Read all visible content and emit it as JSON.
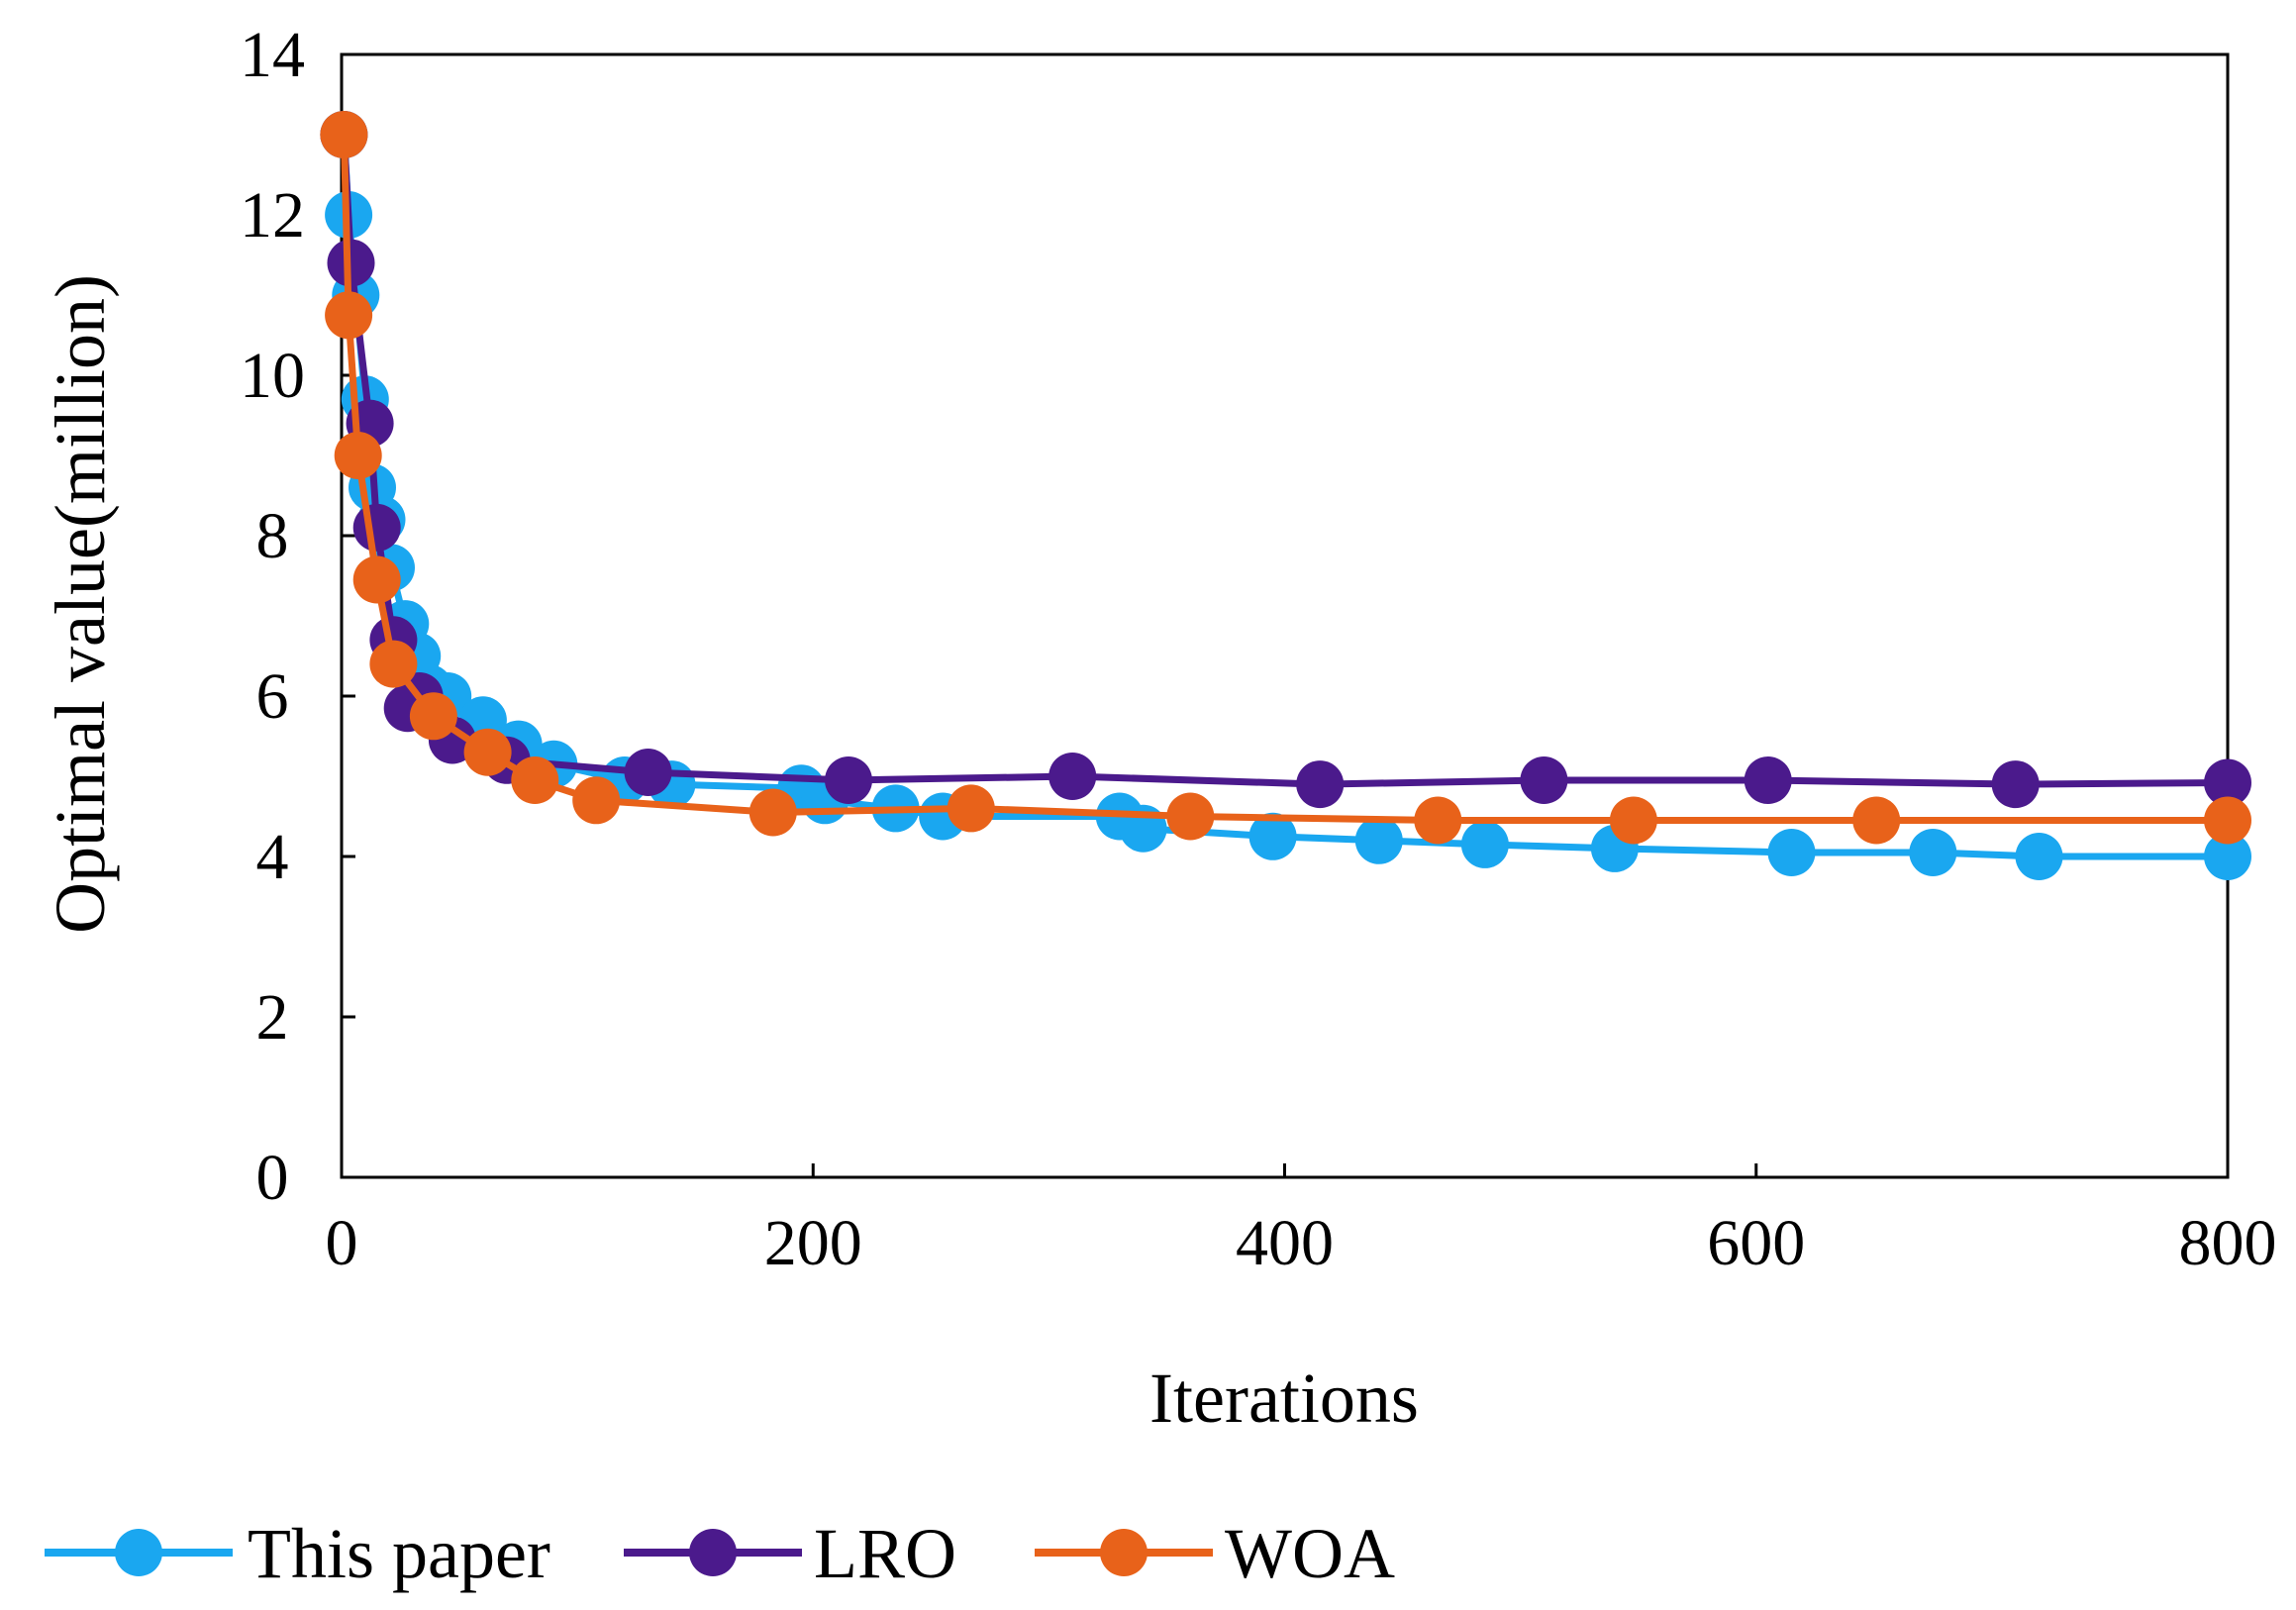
{
  "chart_data": {
    "type": "line",
    "title": "",
    "xlabel": "Iterations",
    "ylabel": "Optimal value(million)",
    "xlim": [
      0,
      800
    ],
    "ylim": [
      0,
      14
    ],
    "xticks": [
      "0",
      "200",
      "400",
      "600",
      "800"
    ],
    "yticks": [
      "0",
      "2",
      "4",
      "6",
      "8",
      "10",
      "12",
      "14"
    ],
    "grid": false,
    "legend_position": "bottom",
    "series": [
      {
        "name": "This paper",
        "color": "#1aa7f0",
        "x": [
          1,
          3,
          6,
          10,
          13,
          17,
          21,
          27,
          32,
          37,
          45,
          60,
          75,
          90,
          120,
          140,
          195,
          205,
          235,
          255,
          330,
          340,
          395,
          440,
          485,
          540,
          615,
          675,
          720,
          800
        ],
        "y": [
          13.0,
          12.0,
          11.0,
          9.7,
          8.6,
          8.2,
          7.6,
          6.9,
          6.5,
          6.1,
          6.0,
          5.7,
          5.4,
          5.15,
          4.95,
          4.9,
          4.85,
          4.7,
          4.6,
          4.5,
          4.5,
          4.35,
          4.25,
          4.2,
          4.15,
          4.1,
          4.05,
          4.05,
          4.0,
          4.0
        ]
      },
      {
        "name": "LRO",
        "color": "#4b1a8c",
        "x": [
          1,
          4,
          12,
          15,
          22,
          28,
          33,
          47,
          70,
          130,
          215,
          310,
          415,
          510,
          605,
          710,
          800
        ],
        "y": [
          13.0,
          11.4,
          9.4,
          8.1,
          6.7,
          5.85,
          6.0,
          5.45,
          5.2,
          5.05,
          4.95,
          5.0,
          4.9,
          4.95,
          4.95,
          4.9,
          4.92
        ]
      },
      {
        "name": "WOA",
        "color": "#e8621a",
        "x": [
          1,
          3,
          7,
          15,
          22,
          39,
          62,
          82,
          108,
          183,
          267,
          360,
          465,
          548,
          651,
          800
        ],
        "y": [
          13.0,
          10.75,
          9.0,
          7.45,
          6.4,
          5.75,
          5.3,
          4.95,
          4.7,
          4.55,
          4.6,
          4.5,
          4.45,
          4.45,
          4.45,
          4.45
        ]
      }
    ]
  }
}
